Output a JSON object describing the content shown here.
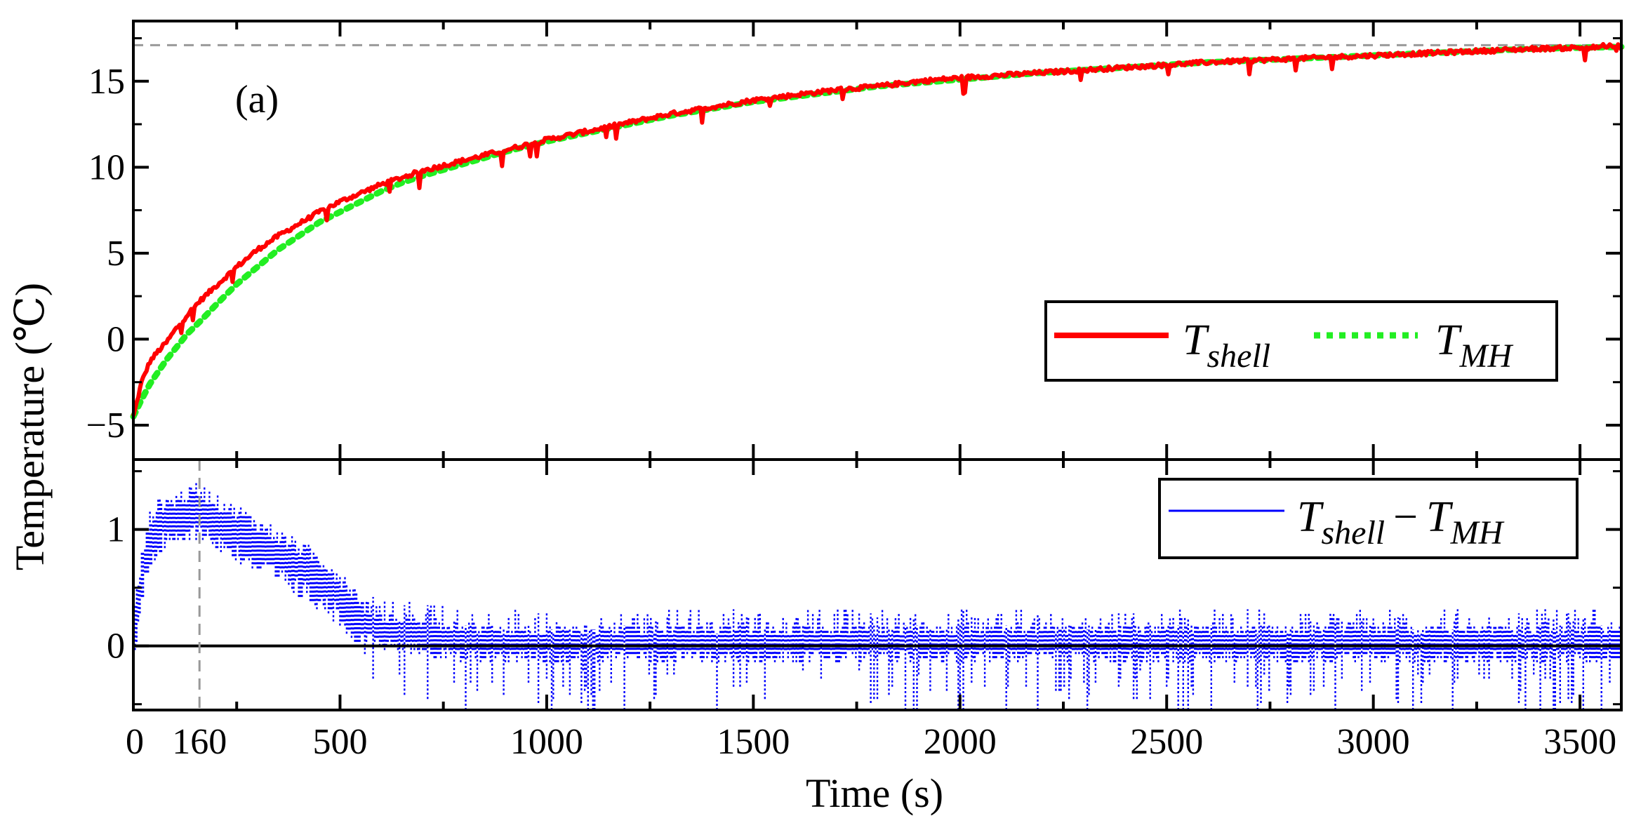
{
  "chart_data": [
    {
      "panel": "top",
      "type": "line",
      "panel_label": "(a)",
      "ylabel": "Temperature (℃)",
      "xlim": [
        0,
        3600
      ],
      "ylim": [
        -7,
        18.5
      ],
      "yticks": [
        -5,
        0,
        5,
        10,
        15
      ],
      "ytick_labels": [
        "−5",
        "0",
        "5",
        "10",
        "15"
      ],
      "reference_hline": 17.1,
      "legend": {
        "placement": "center-right",
        "entries": [
          {
            "main": "T",
            "sub": "shell",
            "series": "T_shell"
          },
          {
            "main": "T",
            "sub": "MH",
            "series": "T_MH"
          }
        ]
      },
      "series": [
        {
          "name": "T_shell",
          "color": "#ff0000",
          "style": "solid",
          "x": [
            0,
            20,
            40,
            60,
            80,
            100,
            130,
            160,
            200,
            250,
            300,
            350,
            400,
            450,
            500,
            550,
            600,
            650,
            700,
            800,
            900,
            1000,
            1100,
            1200,
            1300,
            1400,
            1500,
            1600,
            1700,
            1800,
            1900,
            2000,
            2200,
            2400,
            2600,
            2800,
            3000,
            3200,
            3400,
            3600
          ],
          "y": [
            -4.5,
            -2.5,
            -1.3,
            -0.7,
            -0.2,
            0.5,
            1.4,
            2.2,
            3.1,
            4.2,
            5.2,
            6.0,
            6.7,
            7.4,
            8.0,
            8.5,
            9.0,
            9.4,
            9.8,
            10.4,
            11.0,
            11.6,
            12.1,
            12.6,
            13.1,
            13.5,
            13.9,
            14.2,
            14.5,
            14.7,
            15.0,
            15.2,
            15.5,
            15.8,
            16.1,
            16.3,
            16.5,
            16.7,
            16.9,
            17.0
          ]
        },
        {
          "name": "T_MH",
          "color": "#22ee22",
          "style": "dotted",
          "x": [
            0,
            20,
            40,
            60,
            80,
            100,
            130,
            160,
            200,
            250,
            300,
            350,
            400,
            450,
            500,
            550,
            600,
            650,
            700,
            800,
            900,
            1000,
            1100,
            1200,
            1300,
            1400,
            1500,
            1600,
            1700,
            1800,
            1900,
            2000,
            2200,
            2400,
            2600,
            2800,
            3000,
            3200,
            3400,
            3600
          ],
          "y": [
            -4.5,
            -3.5,
            -2.6,
            -1.9,
            -1.2,
            -0.6,
            0.3,
            1.0,
            2.0,
            3.2,
            4.2,
            5.2,
            6.0,
            6.8,
            7.4,
            8.0,
            8.6,
            9.1,
            9.5,
            10.2,
            10.9,
            11.5,
            12.0,
            12.5,
            13.0,
            13.4,
            13.8,
            14.1,
            14.4,
            14.7,
            14.9,
            15.1,
            15.5,
            15.8,
            16.1,
            16.3,
            16.5,
            16.7,
            16.9,
            17.0
          ]
        }
      ]
    },
    {
      "panel": "bottom",
      "type": "line",
      "xlabel": "Time (s)",
      "xlim": [
        0,
        3600
      ],
      "ylim": [
        -0.55,
        1.6
      ],
      "yticks": [
        0,
        1
      ],
      "ytick_labels": [
        "0",
        "1"
      ],
      "xticks": [
        0,
        160,
        500,
        1000,
        1500,
        2000,
        2500,
        3000,
        3500
      ],
      "xtick_labels": [
        "0",
        "160",
        "500",
        "1000",
        "1500",
        "2000",
        "2500",
        "3000",
        "3500"
      ],
      "reference_vline": 160,
      "zero_line": 0,
      "legend": {
        "placement": "top-right",
        "entries": [
          {
            "main1": "T",
            "sub1": "shell",
            "operator": "−",
            "main2": "T",
            "sub2": "MH",
            "series": "difference"
          }
        ]
      },
      "series": [
        {
          "name": "T_shell - T_MH",
          "color": "#0000ff",
          "style": "noisy-band",
          "x": [
            0,
            20,
            40,
            60,
            80,
            100,
            130,
            160,
            200,
            250,
            300,
            350,
            400,
            450,
            500,
            550,
            600,
            700,
            800,
            900,
            1000,
            1200,
            1400,
            1600,
            1800,
            2000,
            2200,
            2400,
            2600,
            2800,
            3000,
            3200,
            3400,
            3600
          ],
          "y": [
            0.1,
            0.6,
            0.95,
            1.05,
            1.1,
            1.1,
            1.15,
            1.2,
            1.1,
            1.0,
            0.9,
            0.8,
            0.7,
            0.6,
            0.45,
            0.25,
            0.15,
            0.1,
            0.06,
            0.04,
            0.04,
            0.05,
            0.05,
            0.05,
            0.05,
            0.05,
            0.05,
            0.05,
            0.05,
            0.05,
            0.05,
            0.05,
            0.05,
            0.05
          ]
        }
      ]
    }
  ]
}
